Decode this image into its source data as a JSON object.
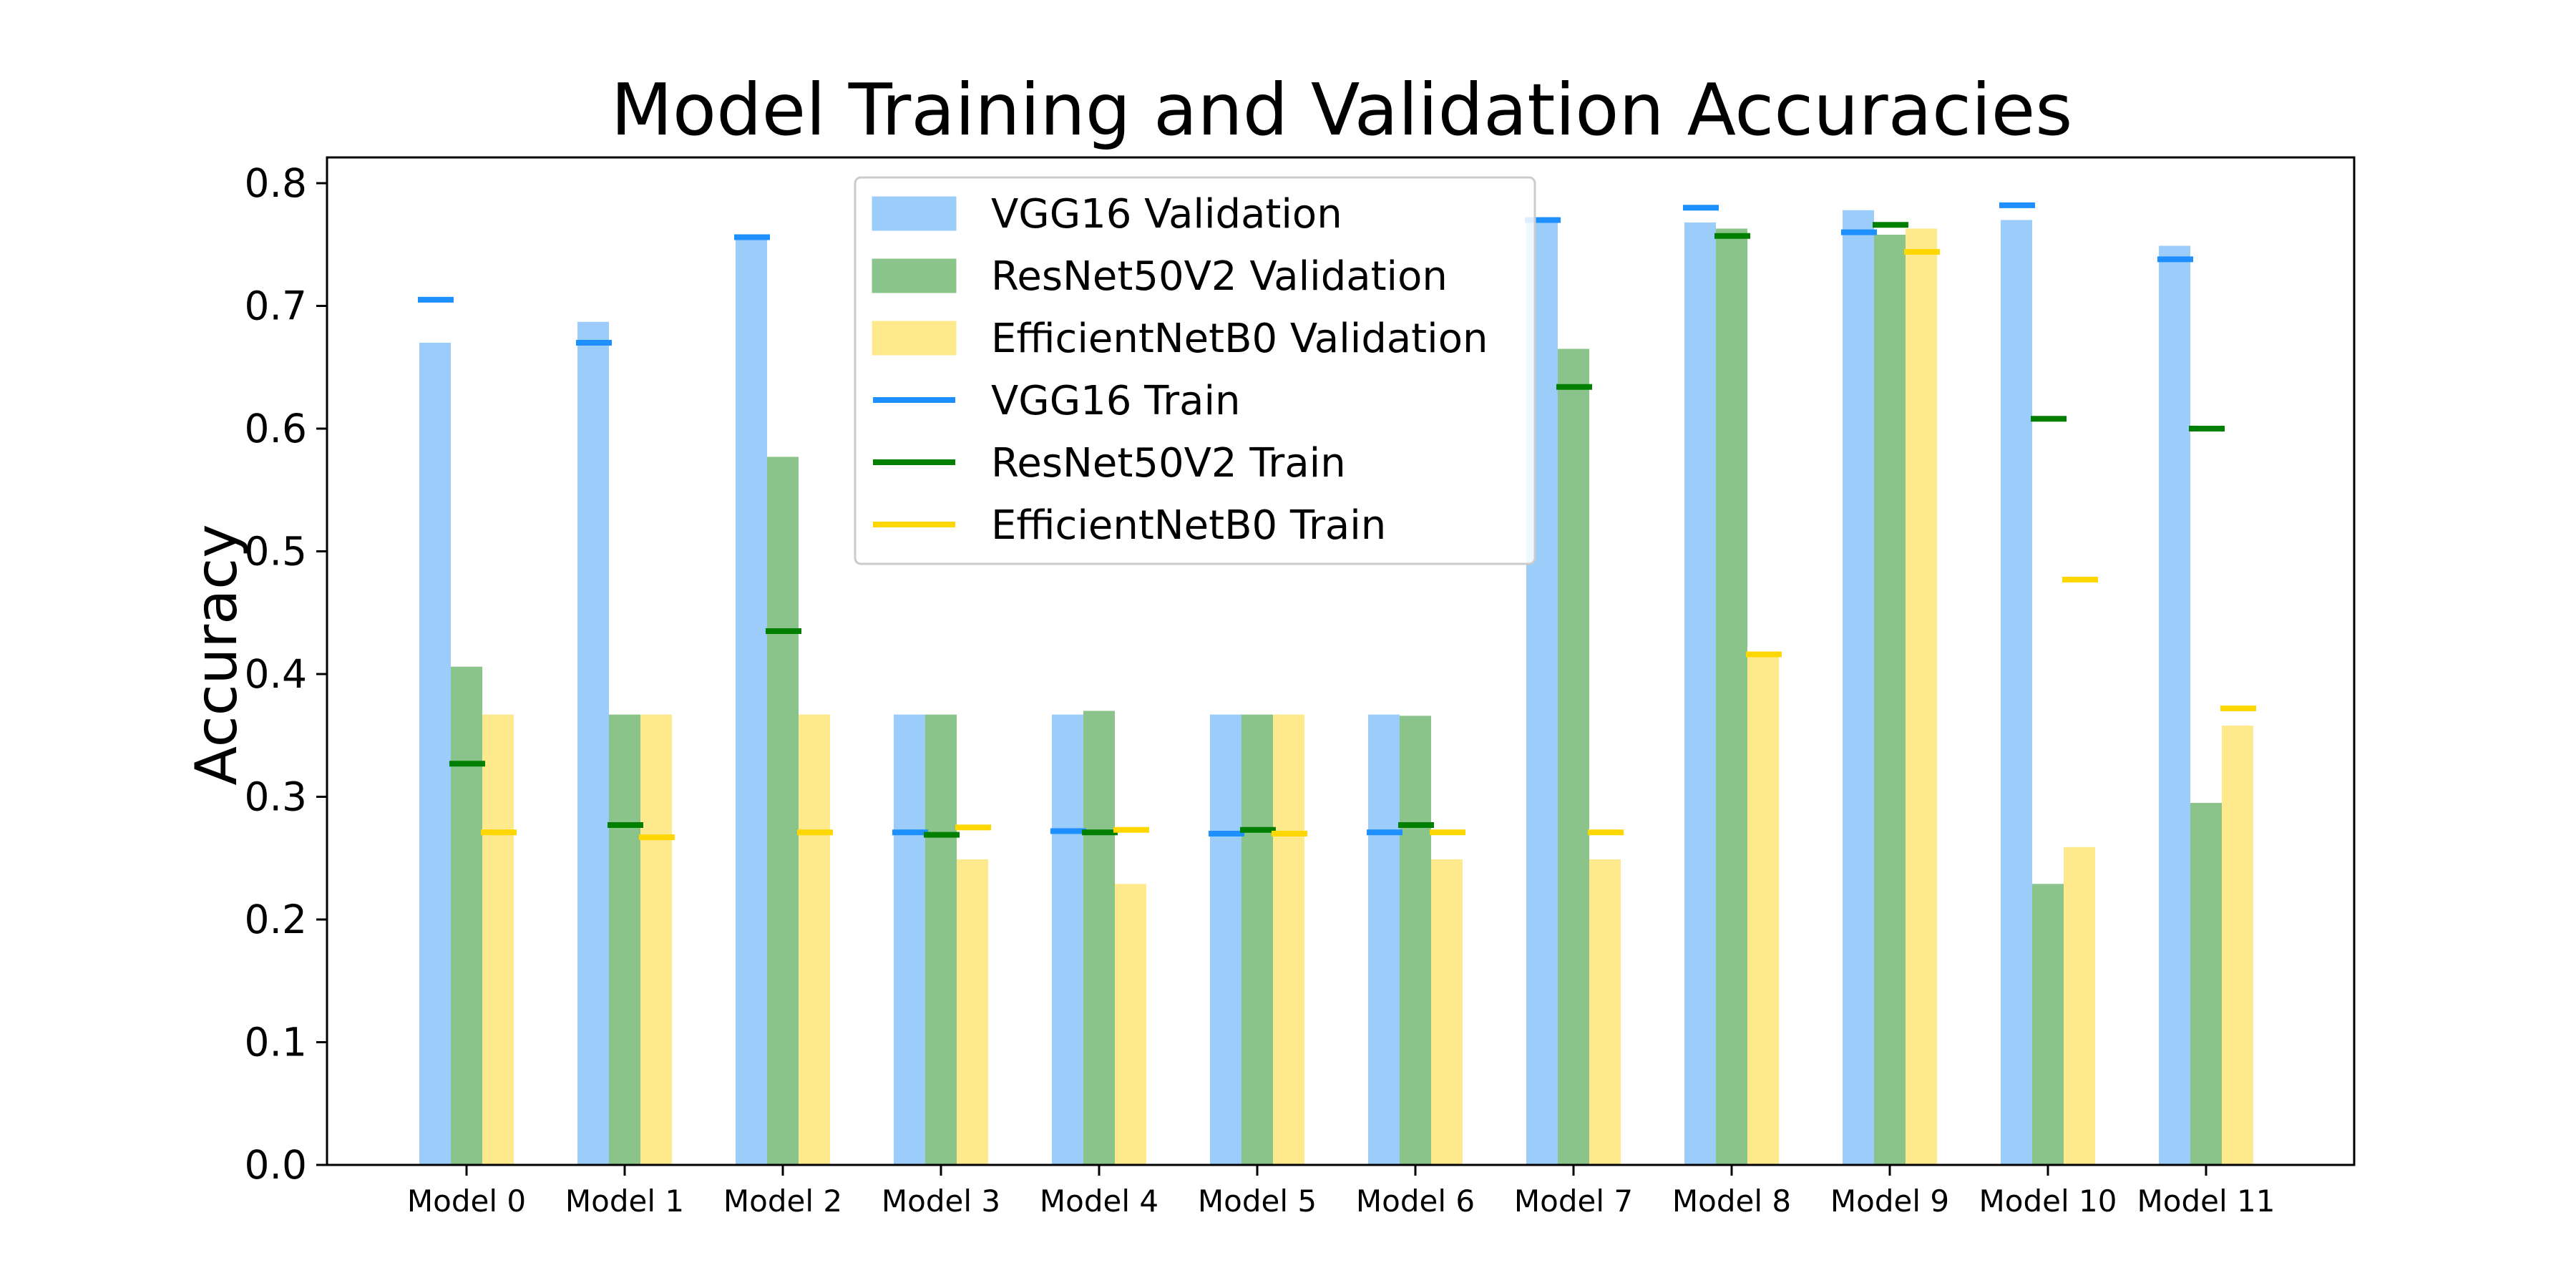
{
  "chart_data": {
    "type": "bar",
    "title": "Model Training and Validation Accuracies",
    "xlabel": "",
    "ylabel": "Accuracy",
    "ylim": [
      0,
      0.82
    ],
    "yticks": [
      "0.0",
      "0.1",
      "0.2",
      "0.3",
      "0.4",
      "0.5",
      "0.6",
      "0.7",
      "0.8"
    ],
    "grid": false,
    "legend_position": "top-center",
    "categories": [
      "Model 0",
      "Model 1",
      "Model 2",
      "Model 3",
      "Model 4",
      "Model 5",
      "Model 6",
      "Model 7",
      "Model 8",
      "Model 9",
      "Model 10",
      "Model 11"
    ],
    "series": [
      {
        "name": "VGG16 Validation",
        "kind": "bar",
        "group": 0,
        "color": "#9ccdfa",
        "values": [
          0.67,
          0.687,
          0.756,
          0.367,
          0.367,
          0.367,
          0.367,
          0.77,
          0.768,
          0.778,
          0.77,
          0.749
        ]
      },
      {
        "name": "ResNet50V2 Validation",
        "kind": "bar",
        "group": 1,
        "color": "#8bc48a",
        "values": [
          0.406,
          0.367,
          0.577,
          0.367,
          0.37,
          0.367,
          0.366,
          0.665,
          0.763,
          0.758,
          0.229,
          0.295
        ]
      },
      {
        "name": "EfficientNetB0 Validation",
        "kind": "bar",
        "group": 2,
        "color": "#ffe98d",
        "values": [
          0.367,
          0.367,
          0.367,
          0.249,
          0.229,
          0.367,
          0.249,
          0.249,
          0.418,
          0.763,
          0.259,
          0.358
        ]
      },
      {
        "name": "VGG16 Train",
        "kind": "line",
        "group": 0,
        "color": "#1e8fff",
        "values": [
          0.705,
          0.67,
          0.756,
          0.271,
          0.272,
          0.27,
          0.271,
          0.77,
          0.78,
          0.76,
          0.782,
          0.738
        ]
      },
      {
        "name": "ResNet50V2 Train",
        "kind": "line",
        "group": 1,
        "color": "#007f00",
        "values": [
          0.327,
          0.277,
          0.435,
          0.269,
          0.271,
          0.273,
          0.277,
          0.634,
          0.757,
          0.766,
          0.608,
          0.6
        ]
      },
      {
        "name": "EfficientNetB0 Train",
        "kind": "line",
        "group": 2,
        "color": "#ffd700",
        "values": [
          0.271,
          0.267,
          0.271,
          0.275,
          0.273,
          0.27,
          0.271,
          0.271,
          0.416,
          0.744,
          0.477,
          0.372
        ]
      }
    ]
  }
}
